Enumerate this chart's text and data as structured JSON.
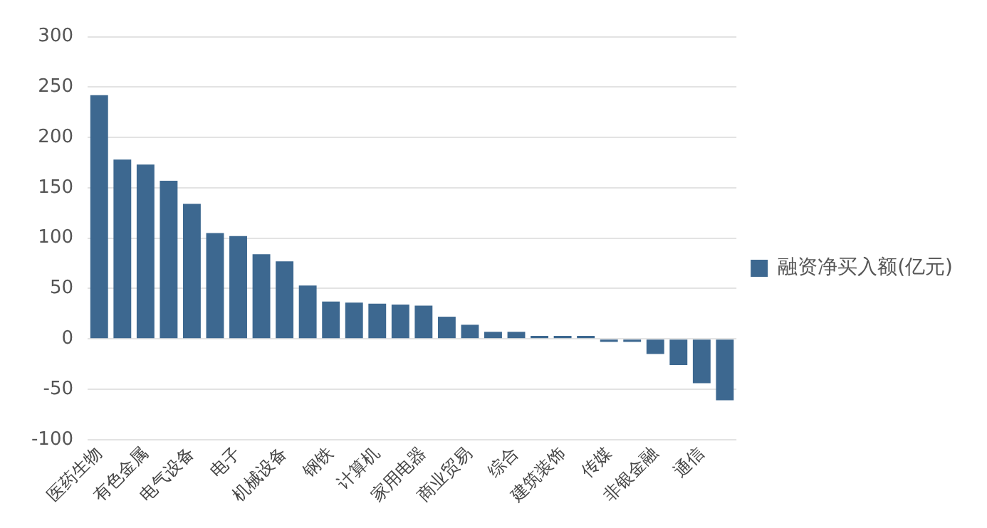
{
  "chart_data": {
    "type": "bar",
    "categories": [
      "医药生物",
      null,
      "有色金属",
      null,
      "电气设备",
      null,
      "电子",
      null,
      "机械设备",
      null,
      "钢铁",
      null,
      "计算机",
      null,
      "家用电器",
      null,
      "商业贸易",
      null,
      "综合",
      null,
      "建筑装饰",
      null,
      "传媒",
      null,
      "非银金融",
      null,
      "通信",
      null
    ],
    "series": [
      {
        "name": "融资净买入额(亿元)",
        "color": "#3d6890",
        "values": [
          242,
          178,
          173,
          157,
          134,
          105,
          102,
          84,
          77,
          53,
          37,
          36,
          35,
          34,
          33,
          22,
          14,
          7,
          7,
          3,
          3,
          3,
          -3,
          -3,
          -15,
          -26,
          -44,
          -61
        ]
      }
    ],
    "ylim": [
      -100,
      300
    ],
    "yticks": [
      -100,
      -50,
      0,
      50,
      100,
      150,
      200,
      250,
      300
    ],
    "grid": "y",
    "legend": "right"
  }
}
